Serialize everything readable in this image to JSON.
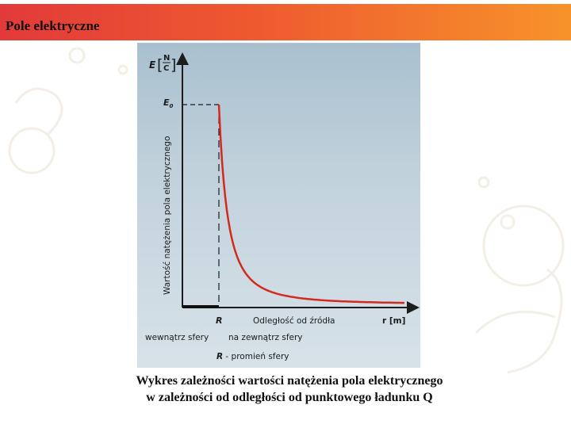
{
  "header": {
    "title": "Pole elektryczne"
  },
  "diagram": {
    "y_axis_symbol": "E",
    "y_axis_unit_numerator": "N",
    "y_axis_unit_denominator": "C",
    "y_axis_label": "Wartość natężenia pola elektrycznego",
    "e0_label": "E",
    "e0_subscript": "0",
    "r_tick_label": "R",
    "x_axis_label": "Odległość od źródła",
    "x_axis_end_label": "r [m]",
    "inside_label": "wewnątrz sfery",
    "outside_label": "na zewnątrz sfery",
    "legend_symbol": "R",
    "legend_text": " - promień sfery",
    "colors": {
      "curve": "#d42a1e",
      "inside_segment": "#111111",
      "axes": "#1c1c1c"
    }
  },
  "caption": {
    "line1": "Wykres zależności wartości natężenia pola elektrycznego",
    "line2": "w zależności od odległości od punktowego ładunku Q"
  }
}
